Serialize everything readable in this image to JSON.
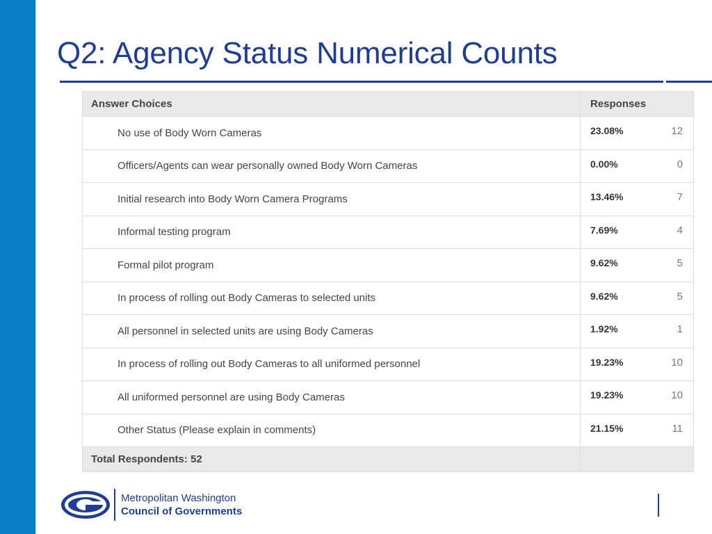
{
  "slide": {
    "title": "Q2: Agency Status Numerical Counts"
  },
  "table": {
    "headers": {
      "choice": "Answer Choices",
      "responses": "Responses"
    },
    "rows": [
      {
        "choice": "No use of Body Worn Cameras",
        "percent": "23.08%",
        "count": "12"
      },
      {
        "choice": "Officers/Agents can wear personally owned Body Worn Cameras",
        "percent": "0.00%",
        "count": "0"
      },
      {
        "choice": "Initial research into Body Worn Camera Programs",
        "percent": "13.46%",
        "count": "7"
      },
      {
        "choice": "Informal testing program",
        "percent": "7.69%",
        "count": "4"
      },
      {
        "choice": "Formal pilot program",
        "percent": "9.62%",
        "count": "5"
      },
      {
        "choice": "In process of rolling out Body Cameras to selected units",
        "percent": "9.62%",
        "count": "5"
      },
      {
        "choice": "All personnel in selected units are using Body Cameras",
        "percent": "1.92%",
        "count": "1"
      },
      {
        "choice": "In process of rolling out Body Cameras to all uniformed personnel",
        "percent": "19.23%",
        "count": "10"
      },
      {
        "choice": "All uniformed personnel are using Body Cameras",
        "percent": "19.23%",
        "count": "10"
      },
      {
        "choice": "Other Status (Please explain in comments)",
        "percent": "21.15%",
        "count": "11"
      }
    ],
    "footer": "Total Respondents: 52"
  },
  "logo": {
    "line1": "Metropolitan Washington",
    "line2": "Council of Governments"
  },
  "colors": {
    "accent_bar": "#0a7cc6",
    "title": "#1f3d96",
    "header_bg": "#e9e9e9"
  },
  "icons": {
    "logo_mark": "cog-logo-icon"
  }
}
